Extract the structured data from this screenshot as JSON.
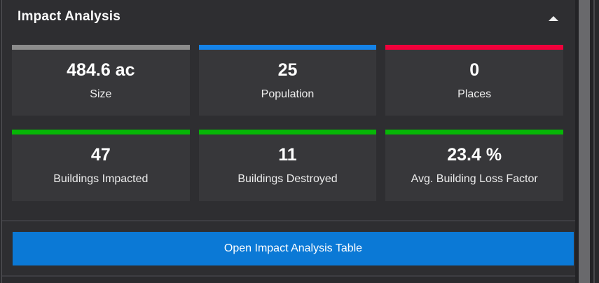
{
  "panel": {
    "title": "Impact Analysis"
  },
  "stats": [
    {
      "value": "484.6 ac",
      "label": "Size",
      "bar_color": "#8c8c8c"
    },
    {
      "value": "25",
      "label": "Population",
      "bar_color": "#1583e8"
    },
    {
      "value": "0",
      "label": "Places",
      "bar_color": "#f1003b"
    },
    {
      "value": "47",
      "label": "Buildings Impacted",
      "bar_color": "#06b606"
    },
    {
      "value": "11",
      "label": "Buildings Destroyed",
      "bar_color": "#06b606"
    },
    {
      "value": "23.4 %",
      "label": "Avg. Building Loss Factor",
      "bar_color": "#06b606"
    }
  ],
  "actions": {
    "open_table": "Open Impact Analysis Table"
  },
  "colors": {
    "panel_background": "#2e2e31",
    "card_background": "#37373a",
    "button_blue": "#0b79d6"
  }
}
